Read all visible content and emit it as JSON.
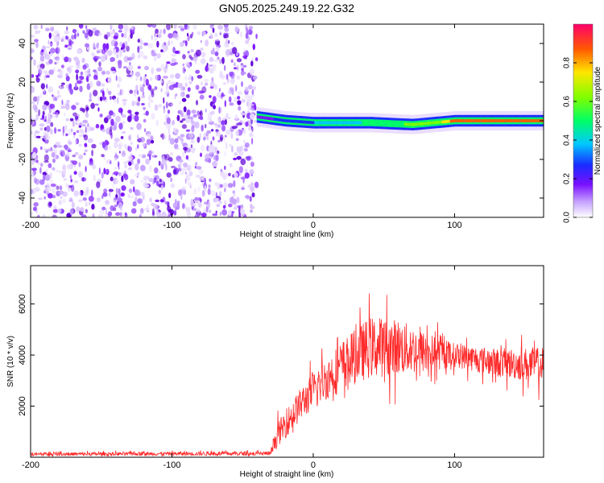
{
  "title": "GN05.2025.249.19.22.G32",
  "chart_data": [
    {
      "type": "heatmap",
      "xlabel": "Height of straight line (km)",
      "ylabel": "Frequency (Hz)",
      "xlim": [
        -200,
        163
      ],
      "ylim": [
        -50,
        50
      ],
      "xticks": [
        -200,
        -100,
        0,
        100
      ],
      "yticks": [
        -40,
        -20,
        0,
        20,
        40
      ],
      "noise_region_x": [
        -200,
        -40
      ],
      "signal_band": {
        "x_start": -40,
        "x_end": 163,
        "freq_center_points": [
          [
            -40,
            2
          ],
          [
            -20,
            0
          ],
          [
            0,
            -1
          ],
          [
            40,
            -1
          ],
          [
            70,
            -2
          ],
          [
            100,
            0
          ],
          [
            163,
            0
          ]
        ],
        "amplitude_points": [
          [
            -40,
            0.35
          ],
          [
            0,
            0.45
          ],
          [
            50,
            0.6
          ],
          [
            90,
            0.75
          ],
          [
            100,
            0.9
          ],
          [
            163,
            0.95
          ]
        ]
      },
      "colorbar": {
        "label": "Normalized spectral amplitude",
        "range": [
          0,
          1
        ],
        "ticks": [
          0.0,
          0.2,
          0.4,
          0.6,
          0.8
        ]
      }
    },
    {
      "type": "line",
      "color": "#ff2a2a",
      "xlabel": "Height of straight line (km)",
      "ylabel": "SNR (10 * v/v)",
      "xlim": [
        -200,
        163
      ],
      "ylim": [
        0,
        7500
      ],
      "xticks": [
        -200,
        -100,
        0,
        100
      ],
      "yticks": [
        2000,
        4000,
        6000
      ],
      "envelope": [
        {
          "x": -200,
          "mean": 120,
          "spread": 80
        },
        {
          "x": -30,
          "mean": 150,
          "spread": 100
        },
        {
          "x": -25,
          "mean": 900,
          "spread": 600
        },
        {
          "x": -10,
          "mean": 2000,
          "spread": 800
        },
        {
          "x": 0,
          "mean": 2600,
          "spread": 900
        },
        {
          "x": 20,
          "mean": 3600,
          "spread": 1200
        },
        {
          "x": 40,
          "mean": 4300,
          "spread": 1500
        },
        {
          "x": 60,
          "mean": 4300,
          "spread": 1400
        },
        {
          "x": 80,
          "mean": 4100,
          "spread": 1000
        },
        {
          "x": 100,
          "mean": 4000,
          "spread": 600
        },
        {
          "x": 130,
          "mean": 3700,
          "spread": 700
        },
        {
          "x": 163,
          "mean": 3600,
          "spread": 900
        }
      ]
    }
  ]
}
